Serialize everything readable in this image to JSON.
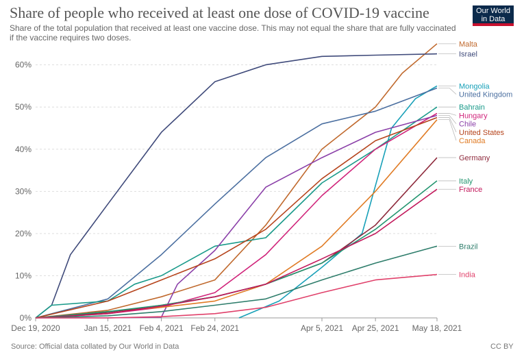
{
  "header": {
    "title": "Share of people who received at least one dose of COVID-19 vaccine",
    "subtitle": "Share of the total population that received at least one vaccine dose. This may not equal the share that are fully vaccinated if the vaccine requires two doses."
  },
  "logo": {
    "line1": "Our World",
    "line2": "in Data"
  },
  "footer": {
    "source": "Source: Official data collated by Our World in Data",
    "license": "CC BY"
  },
  "chart_data": {
    "type": "line",
    "x_ticks": [
      "Dec 19, 2020",
      "Jan 15, 2021",
      "Feb 4, 2021",
      "Feb 24, 2021",
      "Apr 5, 2021",
      "Apr 25, 2021",
      "May 18, 2021"
    ],
    "y_ticks": [
      "0%",
      "10%",
      "20%",
      "30%",
      "40%",
      "50%",
      "60%"
    ],
    "ylim": [
      0,
      64
    ],
    "grid": true,
    "series": [
      {
        "name": "Malta",
        "color": "#c0692d",
        "x": [
          "Dec 19, 2020",
          "Jan 15, 2021",
          "Feb 4, 2021",
          "Feb 24, 2021",
          "Mar 15, 2021",
          "Apr 5, 2021",
          "Apr 25, 2021",
          "May 5, 2021",
          "May 18, 2021"
        ],
        "values": [
          0,
          1.8,
          5,
          9,
          22,
          40,
          50,
          58,
          65
        ]
      },
      {
        "name": "Israel",
        "color": "#3f4a7a",
        "x": [
          "Dec 19, 2020",
          "Dec 25, 2020",
          "Jan 1, 2021",
          "Jan 15, 2021",
          "Feb 4, 2021",
          "Feb 24, 2021",
          "Mar 15, 2021",
          "Apr 5, 2021",
          "Apr 25, 2021",
          "May 18, 2021"
        ],
        "values": [
          0,
          3,
          15,
          27,
          44,
          56,
          60,
          62,
          62.3,
          62.6
        ]
      },
      {
        "name": "Mongolia",
        "color": "#18a0b8",
        "x": [
          "Mar 5, 2021",
          "Mar 20, 2021",
          "Apr 5, 2021",
          "Apr 20, 2021",
          "May 1, 2021",
          "May 10, 2021",
          "May 18, 2021"
        ],
        "values": [
          0,
          4,
          12,
          20,
          45,
          52,
          55
        ]
      },
      {
        "name": "United Kingdom",
        "color": "#4b6fa0",
        "x": [
          "Dec 19, 2020",
          "Jan 15, 2021",
          "Feb 4, 2021",
          "Feb 24, 2021",
          "Mar 15, 2021",
          "Apr 5, 2021",
          "Apr 25, 2021",
          "May 18, 2021"
        ],
        "values": [
          0,
          4.5,
          15,
          27,
          38,
          46,
          49,
          54.5
        ]
      },
      {
        "name": "Bahrain",
        "color": "#1a9a8a",
        "x": [
          "Dec 19, 2020",
          "Dec 25, 2020",
          "Jan 15, 2021",
          "Jan 25, 2021",
          "Feb 4, 2021",
          "Feb 24, 2021",
          "Mar 15, 2021",
          "Apr 5, 2021",
          "Apr 25, 2021",
          "May 18, 2021"
        ],
        "values": [
          0,
          3,
          4,
          8,
          10,
          17,
          19,
          32,
          40,
          50
        ]
      },
      {
        "name": "Hungary",
        "color": "#d0237a",
        "x": [
          "Dec 19, 2020",
          "Jan 15, 2021",
          "Feb 4, 2021",
          "Feb 24, 2021",
          "Mar 15, 2021",
          "Apr 5, 2021",
          "Apr 25, 2021",
          "May 18, 2021"
        ],
        "values": [
          0,
          1,
          2.5,
          6,
          15,
          29,
          40,
          48.5
        ]
      },
      {
        "name": "Chile",
        "color": "#8a3fa8",
        "x": [
          "Dec 19, 2020",
          "Jan 15, 2021",
          "Feb 4, 2021",
          "Feb 10, 2021",
          "Feb 24, 2021",
          "Mar 15, 2021",
          "Apr 5, 2021",
          "Apr 25, 2021",
          "May 18, 2021"
        ],
        "values": [
          0,
          0,
          0.2,
          8,
          16,
          31,
          38,
          44,
          48
        ]
      },
      {
        "name": "United States",
        "color": "#b5431b",
        "x": [
          "Dec 19, 2020",
          "Jan 15, 2021",
          "Feb 4, 2021",
          "Feb 24, 2021",
          "Mar 15, 2021",
          "Apr 5, 2021",
          "Apr 25, 2021",
          "May 18, 2021"
        ],
        "values": [
          0,
          4,
          9,
          14,
          21,
          33,
          42,
          47.5
        ]
      },
      {
        "name": "Canada",
        "color": "#e07b24",
        "x": [
          "Dec 19, 2020",
          "Jan 15, 2021",
          "Feb 4, 2021",
          "Feb 24, 2021",
          "Mar 15, 2021",
          "Apr 5, 2021",
          "Apr 25, 2021",
          "May 18, 2021"
        ],
        "values": [
          0,
          1.5,
          2.5,
          4,
          8,
          17,
          30,
          47
        ]
      },
      {
        "name": "Germany",
        "color": "#8e2a3c",
        "x": [
          "Dec 19, 2020",
          "Jan 15, 2021",
          "Feb 4, 2021",
          "Feb 24, 2021",
          "Mar 15, 2021",
          "Apr 5, 2021",
          "Apr 25, 2021",
          "May 18, 2021"
        ],
        "values": [
          0,
          1.3,
          3,
          5,
          8,
          13,
          22,
          38
        ]
      },
      {
        "name": "Italy",
        "color": "#22956f",
        "x": [
          "Dec 19, 2020",
          "Jan 15, 2021",
          "Feb 4, 2021",
          "Feb 24, 2021",
          "Mar 15, 2021",
          "Apr 5, 2021",
          "Apr 25, 2021",
          "May 18, 2021"
        ],
        "values": [
          0,
          1.5,
          3,
          5,
          8,
          13,
          21,
          32.5
        ]
      },
      {
        "name": "France",
        "color": "#c2185b",
        "x": [
          "Dec 19, 2020",
          "Jan 15, 2021",
          "Feb 4, 2021",
          "Feb 24, 2021",
          "Mar 15, 2021",
          "Apr 5, 2021",
          "Apr 25, 2021",
          "May 18, 2021"
        ],
        "values": [
          0,
          1,
          2.8,
          5,
          8,
          14,
          20,
          30.5
        ]
      },
      {
        "name": "Brazil",
        "color": "#2e7d6b",
        "x": [
          "Dec 19, 2020",
          "Jan 15, 2021",
          "Feb 4, 2021",
          "Feb 24, 2021",
          "Mar 15, 2021",
          "Apr 5, 2021",
          "Apr 25, 2021",
          "May 18, 2021"
        ],
        "values": [
          0,
          0.5,
          1.5,
          3,
          4.5,
          9,
          13,
          17
        ]
      },
      {
        "name": "India",
        "color": "#e0406a",
        "x": [
          "Dec 19, 2020",
          "Jan 15, 2021",
          "Feb 4, 2021",
          "Feb 24, 2021",
          "Mar 15, 2021",
          "Apr 5, 2021",
          "Apr 25, 2021",
          "May 18, 2021"
        ],
        "values": [
          0,
          0,
          0.3,
          1,
          2.5,
          6,
          9,
          10.3
        ]
      }
    ]
  }
}
